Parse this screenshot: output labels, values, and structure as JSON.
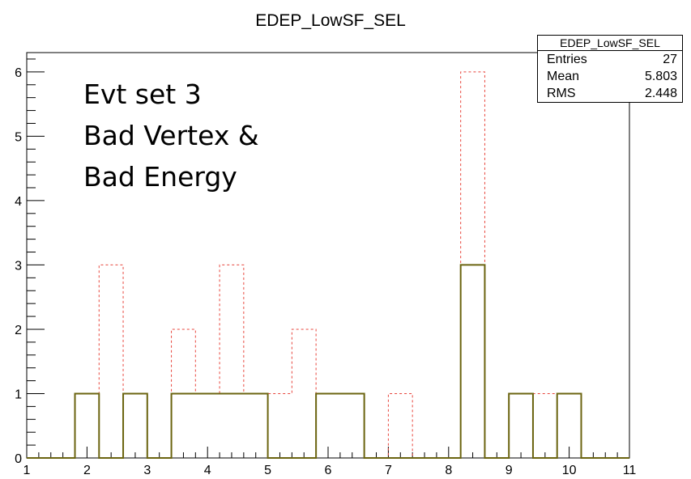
{
  "chart_data": {
    "type": "histogram",
    "title": "EDEP_LowSF_SEL",
    "xlabel": "",
    "ylabel": "",
    "xlim": [
      1,
      11
    ],
    "ylim": [
      0,
      6.3
    ],
    "x_ticks": [
      1,
      2,
      3,
      4,
      5,
      6,
      7,
      8,
      9,
      10,
      11
    ],
    "y_ticks": [
      0,
      1,
      2,
      3,
      4,
      5,
      6
    ],
    "bin_width": 0.4,
    "bin_edges": [
      1.0,
      1.4,
      1.8,
      2.2,
      2.6,
      3.0,
      3.4,
      3.8,
      4.2,
      4.6,
      5.0,
      5.4,
      5.8,
      6.2,
      6.6,
      7.0,
      7.4,
      7.8,
      8.2,
      8.6,
      9.0,
      9.4,
      9.8,
      10.2,
      10.6,
      11.0
    ],
    "series": [
      {
        "style": "solid",
        "color": "#6b6410",
        "values": [
          0,
          0,
          1,
          0,
          1,
          0,
          1,
          1,
          1,
          1,
          0,
          0,
          1,
          1,
          0,
          0,
          0,
          0,
          3,
          0,
          1,
          0,
          1,
          0,
          0
        ]
      },
      {
        "style": "dashed",
        "color": "#e8453c",
        "values": [
          0,
          0,
          1,
          3,
          1,
          0,
          2,
          1,
          3,
          1,
          1,
          2,
          1,
          1,
          0,
          1,
          0,
          0,
          6,
          0,
          1,
          1,
          1,
          0,
          0
        ]
      }
    ],
    "grid": false,
    "legend": "none"
  },
  "stats_box": {
    "title": "EDEP_LowSF_SEL",
    "rows": [
      {
        "label": "Entries",
        "value": "27"
      },
      {
        "label": "Mean",
        "value": "5.803"
      },
      {
        "label": "RMS",
        "value": "2.448"
      }
    ]
  },
  "annotation": {
    "lines": [
      "Evt set 3",
      "Bad Vertex &",
      "Bad Energy"
    ]
  }
}
